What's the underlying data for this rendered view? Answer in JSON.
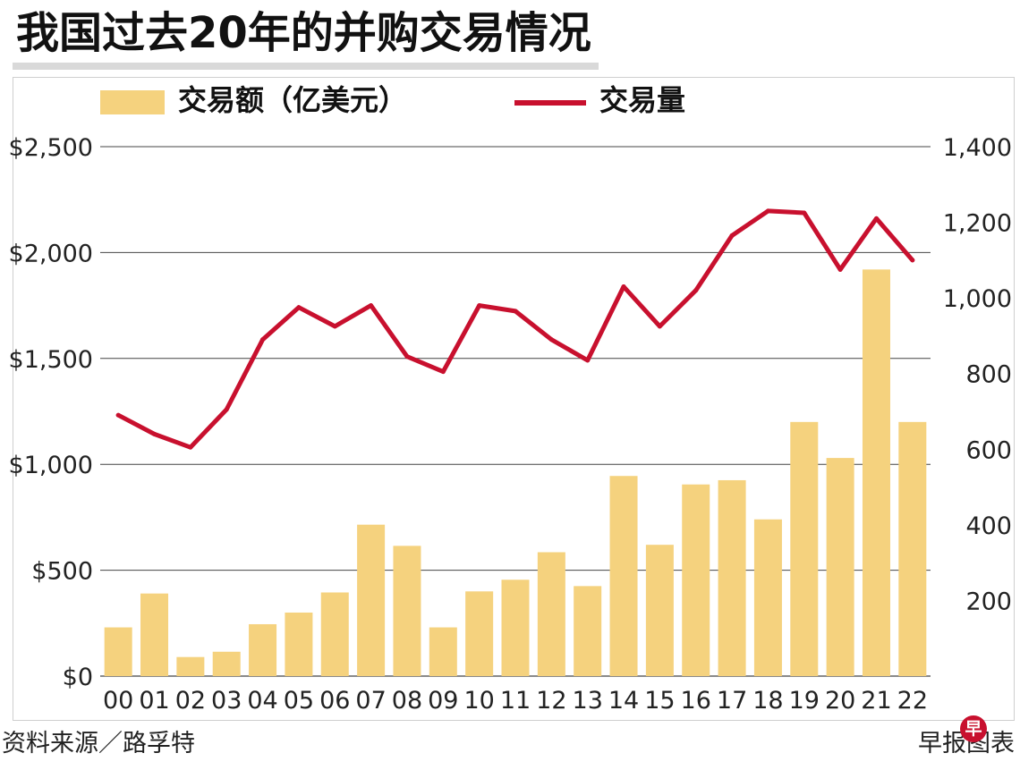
{
  "title": "我国过去20年的并购交易情况",
  "legend": {
    "bar_label": "交易额（亿美元）",
    "line_label": "交易量"
  },
  "source": "资料来源／路孚特",
  "credit": "早报图表",
  "logo_char": "早",
  "colors": {
    "bar": "#f5d27e",
    "line": "#c8102e",
    "grid": "#444444",
    "logo": "#c8102e"
  },
  "chart_data": {
    "type": "bar",
    "categories": [
      "00",
      "01",
      "02",
      "03",
      "04",
      "05",
      "06",
      "07",
      "08",
      "09",
      "10",
      "11",
      "12",
      "13",
      "14",
      "15",
      "16",
      "17",
      "18",
      "19",
      "20",
      "21",
      "22"
    ],
    "series": [
      {
        "name": "交易额（亿美元）",
        "type": "bar",
        "axis": "left",
        "values": [
          230,
          390,
          90,
          115,
          245,
          300,
          395,
          715,
          615,
          230,
          400,
          455,
          585,
          425,
          945,
          620,
          905,
          925,
          740,
          1200,
          1030,
          1920,
          1200
        ]
      },
      {
        "name": "交易量",
        "type": "line",
        "axis": "right",
        "values": [
          690,
          640,
          605,
          705,
          890,
          975,
          925,
          980,
          845,
          805,
          980,
          965,
          890,
          835,
          1030,
          925,
          1020,
          1165,
          1230,
          1225,
          1075,
          1210,
          1100
        ]
      }
    ],
    "y_left": {
      "min": 0,
      "max": 2500,
      "ticks": [
        0,
        500,
        1000,
        1500,
        2000,
        2500
      ],
      "tick_labels": [
        "$0",
        "$500",
        "$1,000",
        "$1,500",
        "$2,000",
        "$2,500"
      ]
    },
    "y_right": {
      "min": 0,
      "max": 1400,
      "ticks": [
        200,
        400,
        600,
        800,
        1000,
        1200,
        1400
      ],
      "tick_labels": [
        "200",
        "400",
        "600",
        "800",
        "1,000",
        "1,200",
        "1,400"
      ]
    },
    "grid": true,
    "legend_position": "top"
  }
}
